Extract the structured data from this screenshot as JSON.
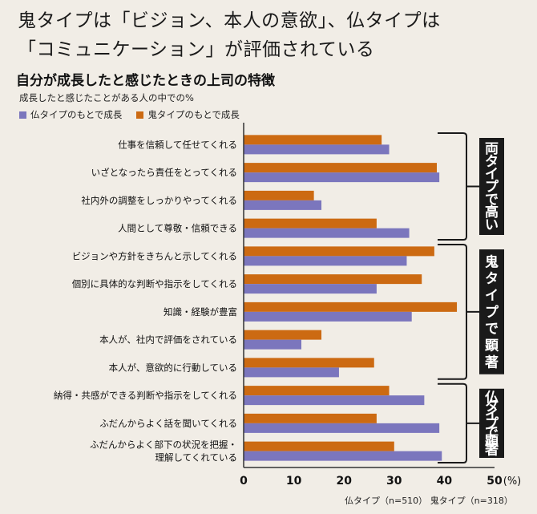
{
  "headline": {
    "line1": "鬼タイプは「ビジョン、本人の意欲」、仏タイプは",
    "line2": "「コミュニケーション」が評価されている"
  },
  "subtitle": "自分が成長したと感じたときの上司の特徴",
  "unit_note": "成長したと感じたことがある人の中での%",
  "footer": {
    "hotoke": "仏タイプ（n=510）",
    "oni": "鬼タイプ（n=318）"
  },
  "colors": {
    "hotoke": "#7b76bd",
    "oni": "#cc6a12",
    "group_box": "#1a1a1a",
    "axis": "#333333"
  },
  "chart_data": {
    "type": "bar",
    "orientation": "horizontal",
    "categories": [
      [
        "仕事を信頼して任せてくれる"
      ],
      [
        "いざとなったら責任をとってくれる"
      ],
      [
        "社内外の調整をしっかりやってくれる"
      ],
      [
        "人間として尊敬・信頼できる"
      ],
      [
        "ビジョンや方針をきちんと示してくれる"
      ],
      [
        "個別に具体的な判断や指示をしてくれる"
      ],
      [
        "知識・経験が豊富"
      ],
      [
        "本人が、社内で評価をされている"
      ],
      [
        "本人が、意欲的に行動している"
      ],
      [
        "納得・共感ができる判断や指示をしてくれる"
      ],
      [
        "ふだんからよく話を聞いてくれる"
      ],
      [
        "ふだんからよく部下の状況を把握・",
        "理解してくれている"
      ]
    ],
    "series": [
      {
        "name": "鬼タイプのもとで成長",
        "key": "oni",
        "values": [
          27.5,
          38.5,
          14,
          26.5,
          38,
          35.5,
          42.5,
          15.5,
          26,
          29,
          26.5,
          30
        ]
      },
      {
        "name": "仏タイプのもとで成長",
        "key": "hotoke",
        "values": [
          29,
          39,
          15.5,
          33,
          32.5,
          26.5,
          33.5,
          11.5,
          19,
          36,
          39,
          39.5
        ]
      }
    ],
    "legend_order": [
      "hotoke",
      "oni"
    ],
    "xlim": [
      0,
      50
    ],
    "xticks": [
      "0",
      "10",
      "20",
      "30",
      "40",
      "50"
    ],
    "x_unit": "(%)",
    "groups": [
      {
        "label": "両タイプで高い",
        "from": 0,
        "to": 3
      },
      {
        "label": "鬼タイプで顕著",
        "from": 4,
        "to": 8
      },
      {
        "label": "仏タイプで顕著",
        "from": 9,
        "to": 11
      }
    ]
  }
}
